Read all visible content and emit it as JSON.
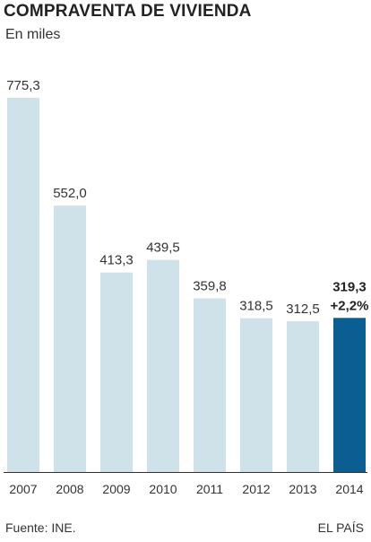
{
  "header": {
    "title": "COMPRAVENTA DE VIVIENDA",
    "subtitle": "En miles"
  },
  "footer": {
    "source": "Fuente: INE.",
    "brand": "EL PAÍS"
  },
  "colors": {
    "bar": "#cfe2ea",
    "highlight_bar": "#0b5e91",
    "axis": "#333333",
    "text": "#333333"
  },
  "chart_data": {
    "type": "bar",
    "title": "COMPRAVENTA DE VIVIENDA",
    "subtitle": "En miles",
    "categories": [
      "2007",
      "2008",
      "2009",
      "2010",
      "2011",
      "2012",
      "2013",
      "2014"
    ],
    "values": [
      775.3,
      552.0,
      413.3,
      439.5,
      359.8,
      318.5,
      312.5,
      319.3
    ],
    "data_labels": [
      "775,3",
      "552,0",
      "413,3",
      "439,5",
      "359,8",
      "318,5",
      "312,5",
      "319,3"
    ],
    "highlight_index": 7,
    "annotation": "+2,2%",
    "ylim": [
      0,
      775.3
    ],
    "grid": false,
    "legend": "none"
  }
}
